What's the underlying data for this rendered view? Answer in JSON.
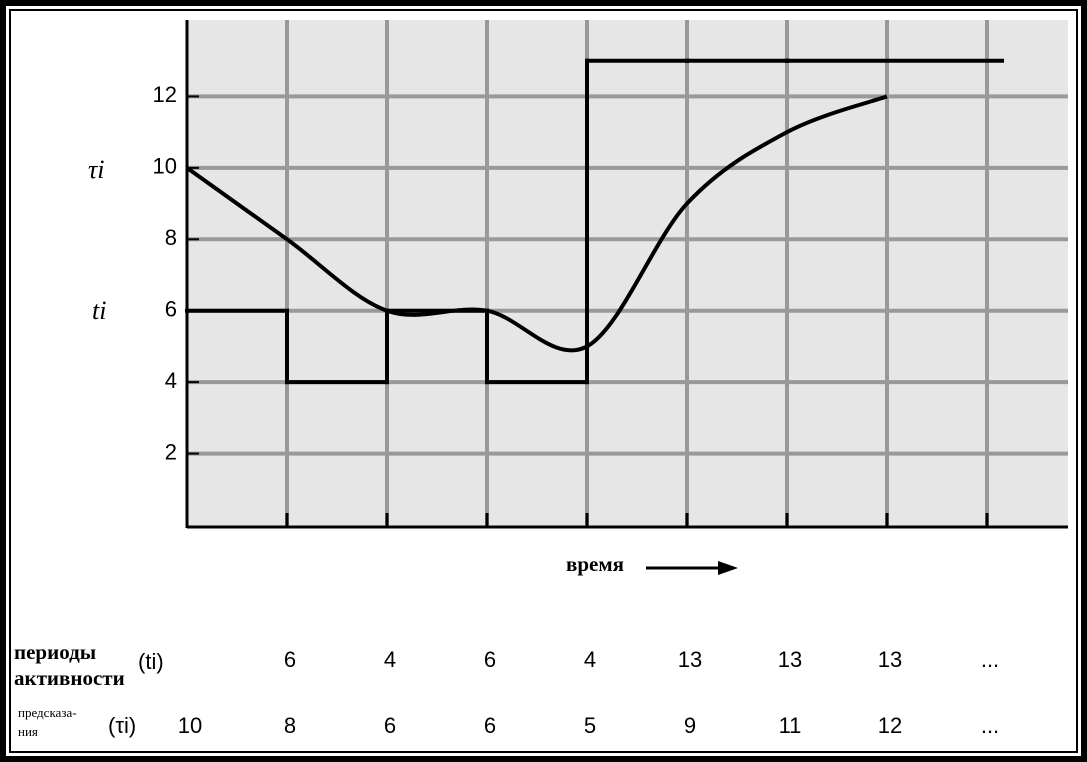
{
  "chart_data": {
    "type": "line",
    "y_labels": [
      "τi",
      "ti"
    ],
    "x_label": "время",
    "xlim": [
      0,
      8.81
    ],
    "xticks": [
      1,
      2,
      3,
      4,
      5,
      6,
      7,
      8
    ],
    "ylim": [
      0,
      14
    ],
    "yticks": [
      2,
      4,
      6,
      8,
      10,
      12
    ],
    "grid": true,
    "series": [
      {
        "name": "(ti)",
        "label": [
          "периоды",
          "активности"
        ],
        "color": "#000000",
        "style": "step",
        "x": [
          0,
          1,
          2,
          3,
          4,
          5,
          6
        ],
        "values": [
          6,
          4,
          6,
          4,
          13,
          13,
          13
        ]
      },
      {
        "name": "(τi)",
        "label": [
          "предсказа-",
          "ния"
        ],
        "color": "#000000",
        "style": "smooth",
        "x": [
          0,
          1,
          2,
          3,
          4,
          5,
          6,
          7
        ],
        "values": [
          10,
          8,
          6,
          6,
          5,
          9,
          11,
          12
        ]
      }
    ],
    "ellipsis": "..."
  }
}
